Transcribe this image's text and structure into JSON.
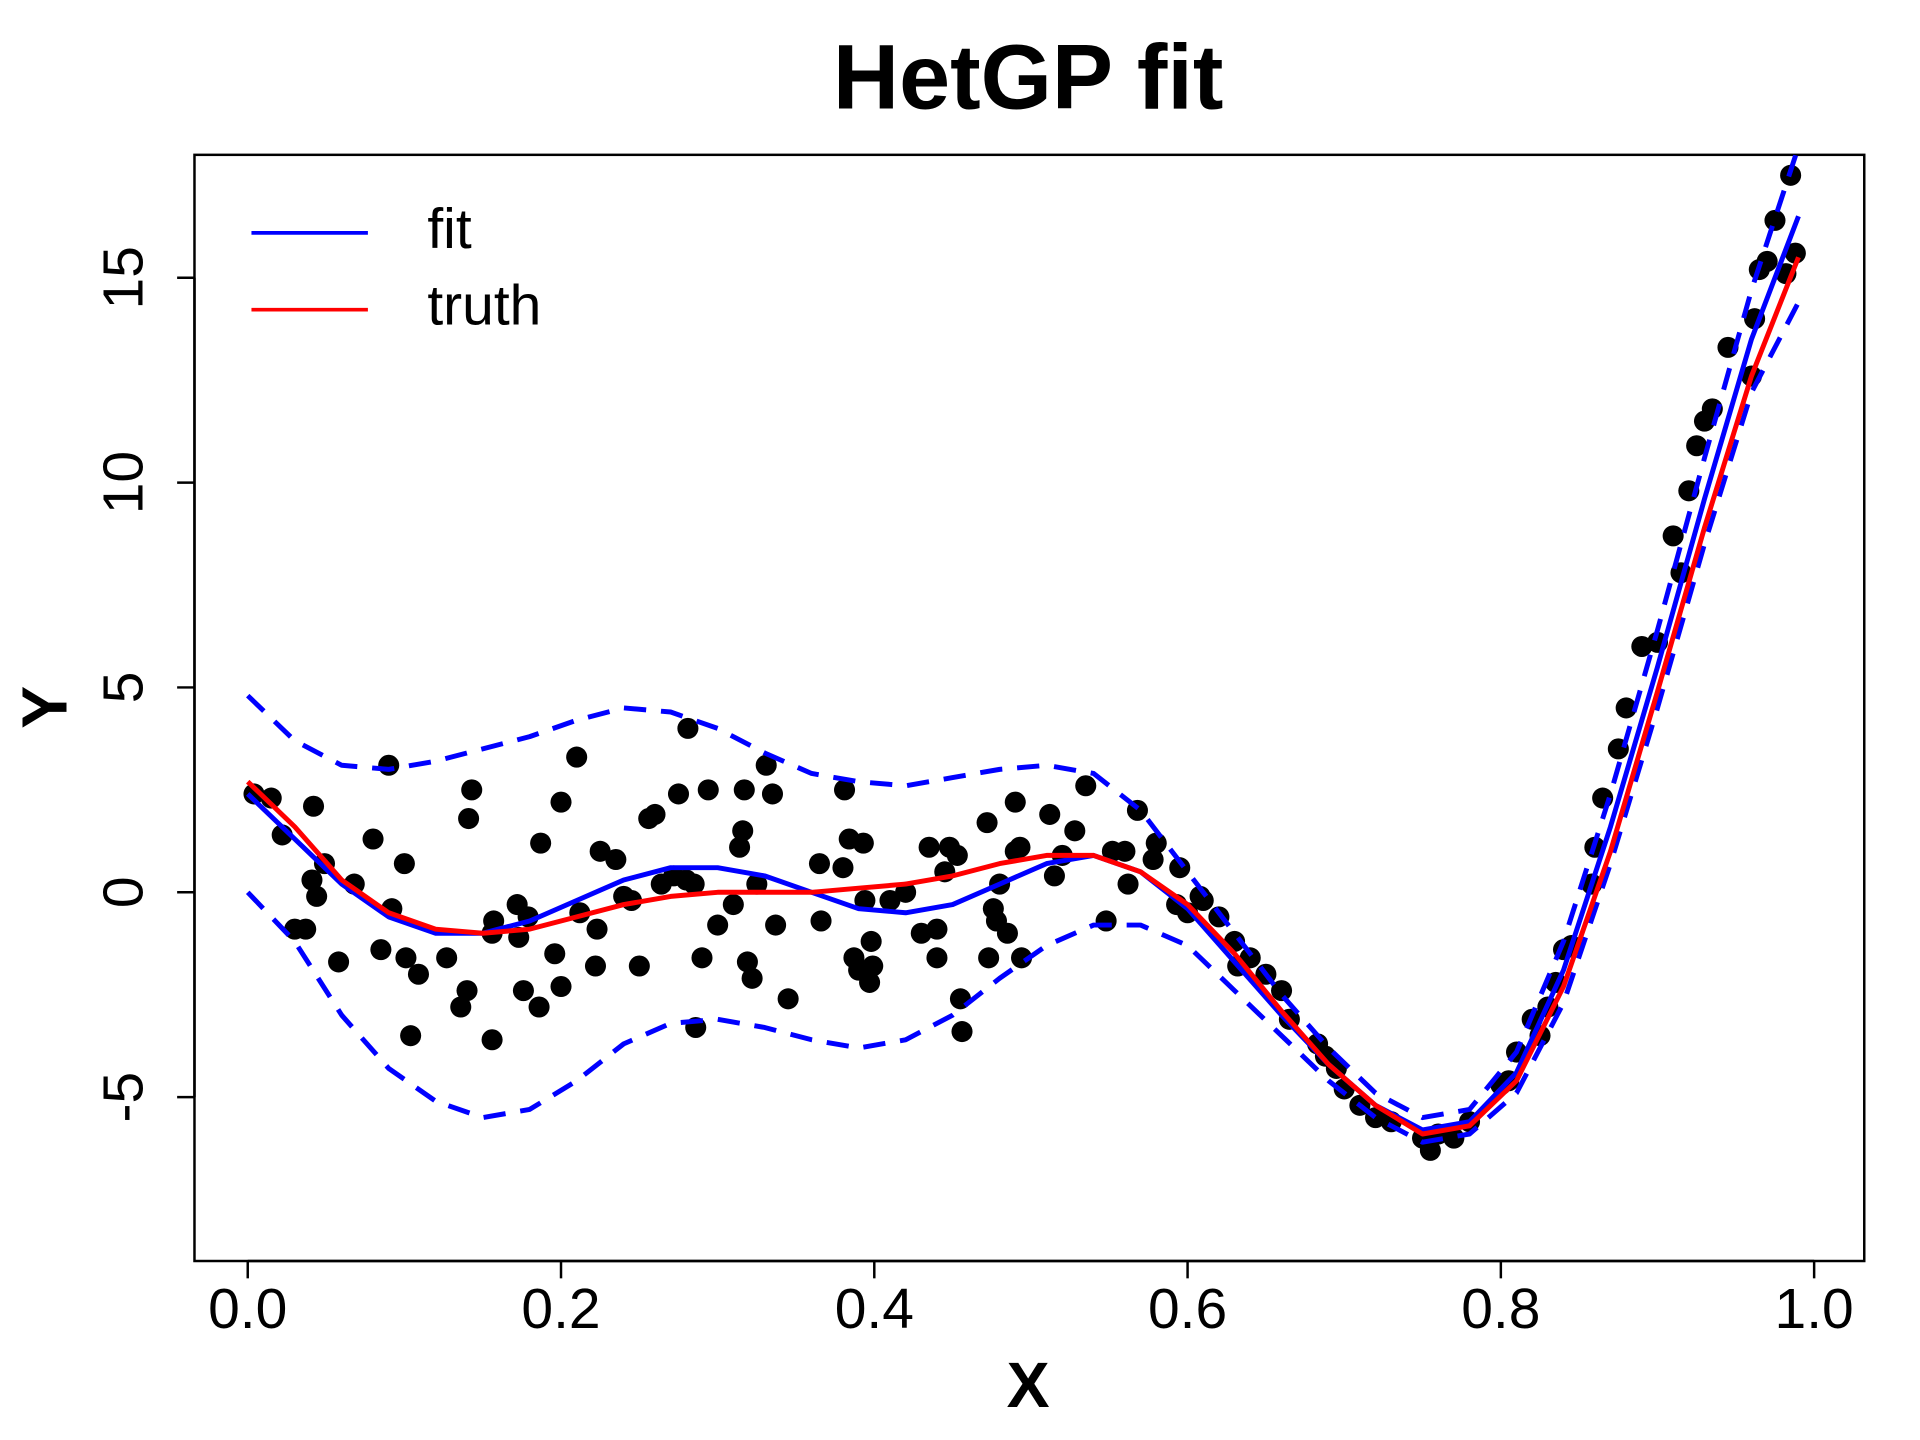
{
  "chart_data": {
    "type": "line",
    "title": "HetGP fit",
    "xlabel": "X",
    "ylabel": "Y",
    "xlim": [
      -0.034,
      1.032
    ],
    "ylim": [
      -9,
      18
    ],
    "xticks": [
      {
        "value": 0,
        "label": "0.0"
      },
      0.2,
      0.4,
      0.6,
      0.8,
      {
        "value": 1,
        "label": "1.0"
      }
    ],
    "yticks": [
      -5,
      0,
      5,
      10,
      15
    ],
    "legend": "top-left",
    "x": [
      0,
      0.03,
      0.06,
      0.09,
      0.12,
      0.15,
      0.18,
      0.21,
      0.24,
      0.27,
      0.3,
      0.33,
      0.36,
      0.39,
      0.42,
      0.45,
      0.48,
      0.51,
      0.54,
      0.57,
      0.6,
      0.63,
      0.66,
      0.69,
      0.72,
      0.75,
      0.78,
      0.81,
      0.84,
      0.87,
      0.9,
      0.93,
      0.96,
      0.99
    ],
    "series": [
      {
        "type": "scatter",
        "color": "#000000",
        "x": [
          0.004,
          0.015,
          0.022,
          0.03,
          0.037,
          0.041,
          0.042,
          0.044,
          0.049,
          0.058,
          0.068,
          0.08,
          0.085,
          0.09,
          0.092,
          0.1,
          0.101,
          0.104,
          0.109,
          0.127,
          0.136,
          0.14,
          0.141,
          0.143,
          0.156,
          0.156,
          0.157,
          0.172,
          0.173,
          0.176,
          0.179,
          0.186,
          0.187,
          0.196,
          0.2,
          0.2,
          0.21,
          0.212,
          0.222,
          0.223,
          0.225,
          0.235,
          0.24,
          0.245,
          0.25,
          0.256,
          0.26,
          0.264,
          0.272,
          0.275,
          0.28,
          0.281,
          0.285,
          0.286,
          0.29,
          0.294,
          0.3,
          0.31,
          0.314,
          0.316,
          0.317,
          0.319,
          0.322,
          0.325,
          0.331,
          0.335,
          0.337,
          0.345,
          0.365,
          0.366,
          0.38,
          0.381,
          0.384,
          0.387,
          0.39,
          0.393,
          0.394,
          0.397,
          0.398,
          0.399,
          0.41,
          0.42,
          0.43,
          0.435,
          0.44,
          0.44,
          0.445,
          0.448,
          0.453,
          0.455,
          0.456,
          0.472,
          0.473,
          0.476,
          0.478,
          0.48,
          0.485,
          0.49,
          0.49,
          0.493,
          0.494,
          0.512,
          0.515,
          0.52,
          0.528,
          0.535,
          0.548,
          0.552,
          0.56,
          0.562,
          0.568,
          0.578,
          0.58,
          0.593,
          0.595,
          0.6,
          0.608,
          0.61,
          0.62,
          0.63,
          0.632,
          0.64,
          0.65,
          0.66,
          0.665,
          0.683,
          0.688,
          0.695,
          0.7,
          0.71,
          0.72,
          0.73,
          0.75,
          0.755,
          0.76,
          0.77,
          0.78,
          0.8,
          0.805,
          0.81,
          0.82,
          0.825,
          0.83,
          0.835,
          0.84,
          0.845,
          0.858,
          0.86,
          0.865,
          0.875,
          0.88,
          0.89,
          0.9,
          0.91,
          0.915,
          0.92,
          0.925,
          0.93,
          0.935,
          0.945,
          0.96,
          0.962,
          0.965,
          0.97,
          0.975,
          0.982,
          0.985,
          0.988
        ],
        "values": [
          2.4,
          2.3,
          1.4,
          -0.9,
          -0.9,
          0.3,
          2.1,
          -0.1,
          0.7,
          -1.7,
          0.2,
          1.3,
          -1.4,
          3.1,
          -0.4,
          0.7,
          -1.6,
          -3.5,
          -2.0,
          -1.6,
          -2.8,
          -2.4,
          1.8,
          2.5,
          -1.0,
          -3.6,
          -0.7,
          -0.3,
          -1.1,
          -2.4,
          -0.6,
          -2.8,
          1.2,
          -1.5,
          -2.3,
          2.2,
          3.3,
          -0.5,
          -1.8,
          -0.9,
          1.0,
          0.8,
          -0.1,
          -0.2,
          -1.8,
          1.8,
          1.9,
          0.2,
          0.4,
          2.4,
          0.3,
          4.0,
          0.2,
          -3.3,
          -1.6,
          2.5,
          -0.8,
          -0.3,
          1.1,
          1.5,
          2.5,
          -1.7,
          -2.1,
          0.2,
          3.1,
          2.4,
          -0.8,
          -2.6,
          0.7,
          -0.7,
          0.6,
          2.5,
          1.3,
          -1.6,
          -1.9,
          1.2,
          -0.2,
          -2.2,
          -1.2,
          -1.8,
          -0.2,
          0.0,
          -1.0,
          1.1,
          -1.6,
          -0.9,
          0.5,
          1.1,
          0.9,
          -2.6,
          -3.4,
          1.7,
          -1.6,
          -0.4,
          -0.7,
          0.2,
          -1.0,
          2.2,
          1.0,
          1.1,
          -1.6,
          1.9,
          0.4,
          0.9,
          1.5,
          2.6,
          -0.7,
          1.0,
          1.0,
          0.2,
          2.0,
          0.8,
          1.2,
          -0.3,
          0.6,
          -0.5,
          -0.1,
          -0.2,
          -0.6,
          -1.2,
          -1.8,
          -1.6,
          -2.0,
          -2.4,
          -3.1,
          -3.7,
          -4.0,
          -4.3,
          -4.8,
          -5.2,
          -5.5,
          -5.6,
          -6.0,
          -6.3,
          -5.9,
          -6.0,
          -5.6,
          -4.7,
          -4.6,
          -3.9,
          -3.1,
          -3.5,
          -2.8,
          -2.2,
          -1.4,
          -1.3,
          0.2,
          1.1,
          2.3,
          3.5,
          4.5,
          6.0,
          6.1,
          8.7,
          7.8,
          9.8,
          10.9,
          11.5,
          11.8,
          13.3,
          12.6,
          14.0,
          15.2,
          15.4,
          16.4,
          15.1,
          17.5,
          15.6
        ]
      },
      {
        "type": "line",
        "dashed": true,
        "color": "#0000ff",
        "values": [
          4.8,
          3.7,
          3.1,
          3.0,
          3.2,
          3.5,
          3.8,
          4.2,
          4.5,
          4.4,
          4.0,
          3.4,
          2.9,
          2.7,
          2.6,
          2.8,
          3.0,
          3.1,
          2.9,
          2.0,
          0.5,
          -1.0,
          -2.5,
          -3.8,
          -4.9,
          -5.5,
          -5.3,
          -3.9,
          -1.2,
          2.4,
          6.4,
          10.6,
          14.7,
          18.2
        ]
      },
      {
        "type": "line",
        "dashed": true,
        "color": "#0000ff",
        "values": [
          0.0,
          -1.2,
          -3.0,
          -4.3,
          -5.1,
          -5.5,
          -5.3,
          -4.6,
          -3.7,
          -3.2,
          -3.1,
          -3.3,
          -3.6,
          -3.8,
          -3.6,
          -3.0,
          -2.1,
          -1.3,
          -0.8,
          -0.8,
          -1.3,
          -2.4,
          -3.5,
          -4.6,
          -5.5,
          -6.1,
          -5.9,
          -4.9,
          -2.7,
          0.7,
          4.5,
          8.5,
          12.2,
          14.4
        ]
      },
      {
        "type": "line",
        "name": "fit",
        "color": "#0000ff",
        "values": [
          2.4,
          1.3,
          0.2,
          -0.6,
          -1.0,
          -1.0,
          -0.7,
          -0.2,
          0.3,
          0.6,
          0.6,
          0.4,
          0.0,
          -0.4,
          -0.5,
          -0.3,
          0.2,
          0.7,
          0.9,
          0.5,
          -0.4,
          -1.7,
          -3.0,
          -4.2,
          -5.2,
          -5.8,
          -5.6,
          -4.4,
          -1.9,
          1.6,
          5.5,
          9.6,
          13.5,
          16.5
        ]
      },
      {
        "type": "line",
        "name": "truth",
        "color": "#ff0000",
        "values": [
          2.7,
          1.6,
          0.3,
          -0.5,
          -0.9,
          -1.0,
          -0.9,
          -0.6,
          -0.3,
          -0.1,
          0.0,
          0.0,
          0.0,
          0.1,
          0.2,
          0.4,
          0.7,
          0.9,
          0.9,
          0.5,
          -0.3,
          -1.5,
          -2.9,
          -4.2,
          -5.2,
          -5.9,
          -5.7,
          -4.6,
          -2.3,
          1.0,
          4.9,
          8.9,
          12.6,
          15.5
        ]
      }
    ]
  }
}
